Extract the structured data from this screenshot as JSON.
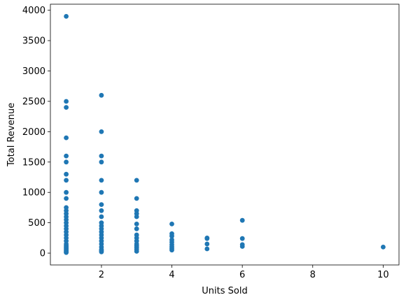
{
  "chart_data": {
    "type": "scatter",
    "title": "",
    "xlabel": "Units Sold",
    "ylabel": "Total Revenue",
    "xlim": [
      0.55,
      10.45
    ],
    "ylim": [
      -195,
      4100
    ],
    "xticks": [
      2,
      4,
      6,
      8,
      10
    ],
    "yticks": [
      0,
      500,
      1000,
      1500,
      2000,
      2500,
      3000,
      3500,
      4000
    ],
    "grid": false,
    "marker_color": "#1f77b4",
    "series": [
      {
        "points": [
          [
            1,
            3900
          ],
          [
            1,
            2500
          ],
          [
            1,
            2400
          ],
          [
            1,
            1900
          ],
          [
            1,
            1600
          ],
          [
            1,
            1500
          ],
          [
            1,
            1300
          ],
          [
            1,
            1200
          ],
          [
            1,
            1000
          ],
          [
            1,
            900
          ],
          [
            1,
            750
          ],
          [
            1,
            700
          ],
          [
            1,
            650
          ],
          [
            1,
            600
          ],
          [
            1,
            550
          ],
          [
            1,
            500
          ],
          [
            1,
            450
          ],
          [
            1,
            400
          ],
          [
            1,
            350
          ],
          [
            1,
            300
          ],
          [
            1,
            250
          ],
          [
            1,
            200
          ],
          [
            1,
            150
          ],
          [
            1,
            120
          ],
          [
            1,
            100
          ],
          [
            1,
            80
          ],
          [
            1,
            60
          ],
          [
            1,
            40
          ],
          [
            1,
            20
          ],
          [
            1,
            10
          ],
          [
            2,
            2600
          ],
          [
            2,
            2000
          ],
          [
            2,
            1600
          ],
          [
            2,
            1500
          ],
          [
            2,
            1200
          ],
          [
            2,
            1000
          ],
          [
            2,
            800
          ],
          [
            2,
            700
          ],
          [
            2,
            600
          ],
          [
            2,
            500
          ],
          [
            2,
            450
          ],
          [
            2,
            400
          ],
          [
            2,
            350
          ],
          [
            2,
            300
          ],
          [
            2,
            250
          ],
          [
            2,
            200
          ],
          [
            2,
            150
          ],
          [
            2,
            100
          ],
          [
            2,
            60
          ],
          [
            2,
            40
          ],
          [
            2,
            20
          ],
          [
            3,
            1200
          ],
          [
            3,
            900
          ],
          [
            3,
            700
          ],
          [
            3,
            650
          ],
          [
            3,
            600
          ],
          [
            3,
            480
          ],
          [
            3,
            400
          ],
          [
            3,
            300
          ],
          [
            3,
            250
          ],
          [
            3,
            200
          ],
          [
            3,
            150
          ],
          [
            3,
            120
          ],
          [
            3,
            90
          ],
          [
            3,
            60
          ],
          [
            3,
            30
          ],
          [
            4,
            480
          ],
          [
            4,
            320
          ],
          [
            4,
            280
          ],
          [
            4,
            220
          ],
          [
            4,
            180
          ],
          [
            4,
            140
          ],
          [
            4,
            110
          ],
          [
            4,
            80
          ],
          [
            4,
            50
          ],
          [
            5,
            250
          ],
          [
            5,
            240
          ],
          [
            5,
            150
          ],
          [
            5,
            70
          ],
          [
            6,
            540
          ],
          [
            6,
            240
          ],
          [
            6,
            140
          ],
          [
            6,
            110
          ],
          [
            10,
            100
          ]
        ]
      }
    ]
  }
}
